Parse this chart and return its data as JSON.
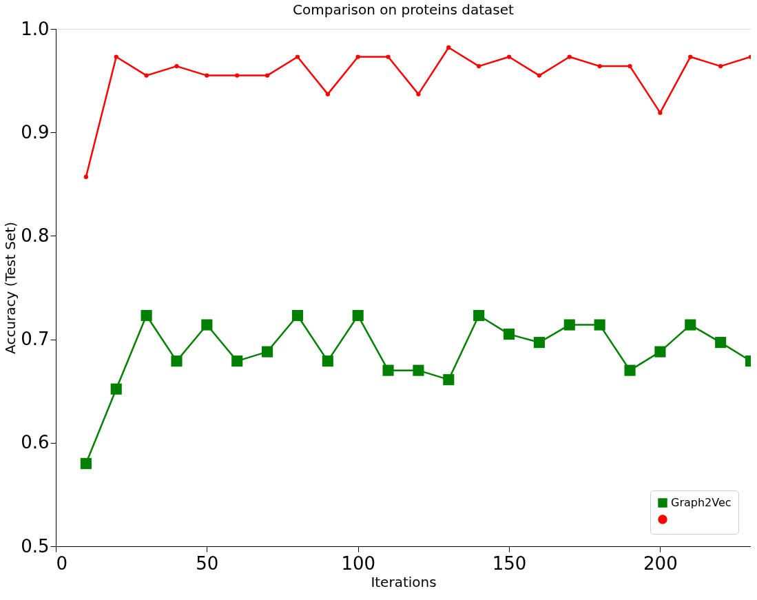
{
  "chart_data": {
    "type": "line",
    "title": "Comparison on proteins dataset",
    "xlabel": "Iterations",
    "ylabel": "Accuracy (Test Set)",
    "x": [
      10,
      20,
      30,
      40,
      50,
      60,
      70,
      80,
      90,
      100,
      110,
      120,
      130,
      140,
      150,
      160,
      170,
      180,
      190,
      200,
      210,
      220,
      230
    ],
    "series": [
      {
        "name": "Graph2Vec",
        "color": "#008000",
        "marker": "square",
        "values": [
          0.58,
          0.652,
          0.723,
          0.679,
          0.714,
          0.679,
          0.688,
          0.723,
          0.679,
          0.723,
          0.67,
          0.67,
          0.661,
          0.723,
          0.705,
          0.697,
          0.714,
          0.714,
          0.67,
          0.688,
          0.714,
          0.697,
          0.679
        ]
      },
      {
        "color": "#ff0000",
        "marker": "circle",
        "values": [
          0.857,
          0.973,
          0.955,
          0.964,
          0.955,
          0.955,
          0.955,
          0.973,
          0.937,
          0.973,
          0.973,
          0.937,
          0.982,
          0.964,
          0.973,
          0.955,
          0.973,
          0.964,
          0.964,
          0.919,
          0.973,
          0.964,
          0.973
        ]
      }
    ],
    "xlim": [
      0,
      230
    ],
    "xticks": [
      0,
      50,
      100,
      150,
      200
    ],
    "ylim": [
      0.5,
      1.0
    ],
    "yticks": [
      0.5,
      0.6,
      0.7,
      0.8,
      0.9,
      {
        "value": 1,
        "label": "1.0"
      }
    ],
    "grid": false,
    "legend": "bottom right"
  }
}
